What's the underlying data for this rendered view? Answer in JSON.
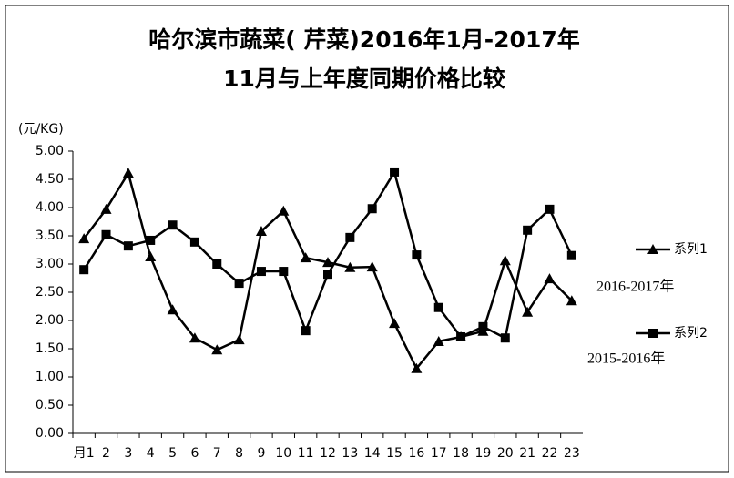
{
  "chart_data": {
    "type": "line",
    "title": [
      "哈尔滨市蔬菜( 芹菜)2016年1月-2017年",
      "11月与上年度同期价格比较"
    ],
    "y_unit": "(元/KG)",
    "categories": [
      "月1",
      "2",
      "3",
      "4",
      "5",
      "6",
      "7",
      "8",
      "9",
      "10",
      "11",
      "12",
      "13",
      "14",
      "15",
      "16",
      "17",
      "18",
      "19",
      "20",
      "21",
      "22",
      "23"
    ],
    "series": [
      {
        "name": "系列1",
        "marker": "triangle",
        "color": "#000000",
        "values": [
          3.45,
          3.97,
          4.61,
          3.13,
          2.19,
          1.69,
          1.48,
          1.66,
          3.58,
          3.94,
          3.11,
          3.03,
          2.94,
          2.95,
          1.95,
          1.15,
          1.63,
          1.71,
          1.81,
          3.06,
          2.15,
          2.74,
          2.35
        ]
      },
      {
        "name": "系列2",
        "marker": "square",
        "color": "#000000",
        "values": [
          2.9,
          3.52,
          3.32,
          3.42,
          3.69,
          3.39,
          3.0,
          2.66,
          2.87,
          2.87,
          1.82,
          2.82,
          3.47,
          3.98,
          4.63,
          3.16,
          2.23,
          1.71,
          1.89,
          1.69,
          3.6,
          3.97,
          3.15
        ]
      }
    ],
    "annotations": [
      "2016-2017年",
      "2015-2016年"
    ],
    "ylim": [
      0,
      5
    ],
    "yticks": [
      {
        "value": 0,
        "label": "0.00"
      },
      {
        "value": 0.5,
        "label": "0.50"
      },
      {
        "value": 1,
        "label": "1.00"
      },
      {
        "value": 1.5,
        "label": "1.50"
      },
      {
        "value": 2,
        "label": "2.00"
      },
      {
        "value": 2.5,
        "label": "2.50"
      },
      {
        "value": 3,
        "label": "3.00"
      },
      {
        "value": 3.5,
        "label": "3.50"
      },
      {
        "value": 4,
        "label": "4.00"
      },
      {
        "value": 4.5,
        "label": "4.50"
      },
      {
        "value": 5,
        "label": "5.00"
      }
    ],
    "grid": false
  }
}
